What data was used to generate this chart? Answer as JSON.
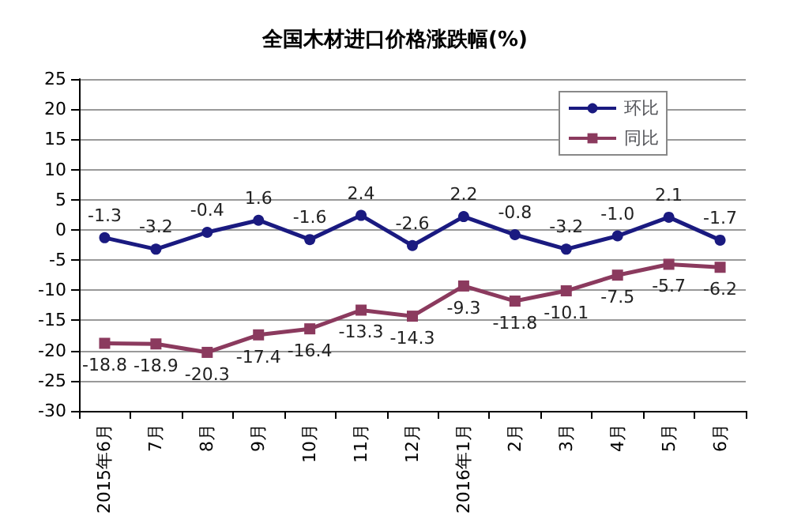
{
  "chart_data": {
    "type": "line",
    "title": "全国木材进口价格涨跌幅(%)",
    "categories": [
      "2015年6月",
      "7月",
      "8月",
      "9月",
      "10月",
      "11月",
      "12月",
      "2016年1月",
      "2月",
      "3月",
      "4月",
      "5月",
      "6月"
    ],
    "series": [
      {
        "name": "环比",
        "color": "#1a1a80",
        "marker": "circle",
        "values": [
          -1.3,
          -3.2,
          -0.4,
          1.6,
          -1.6,
          2.4,
          -2.6,
          2.2,
          -0.8,
          -3.2,
          -1.0,
          2.1,
          -1.7
        ],
        "value_labels": [
          "-1.3",
          "-3.2",
          "-0.4",
          "1.6",
          "-1.6",
          "2.4",
          "-2.6",
          "2.2",
          "-0.8",
          "-3.2",
          "-1.0",
          "2.1",
          "-1.7"
        ]
      },
      {
        "name": "同比",
        "color": "#8b3a5e",
        "marker": "square",
        "values": [
          -18.8,
          -18.9,
          -20.3,
          -17.4,
          -16.4,
          -13.3,
          -14.3,
          -9.3,
          -11.8,
          -10.1,
          -7.5,
          -5.7,
          -6.2
        ]
      }
    ],
    "ylim": [
      -30,
      25
    ],
    "yticks": [
      -30,
      -25,
      -20,
      -15,
      -10,
      -5,
      0,
      5,
      10,
      15,
      20,
      25
    ],
    "grid": "y",
    "legend": "top right",
    "data_labels": true,
    "line_style": "solid"
  }
}
